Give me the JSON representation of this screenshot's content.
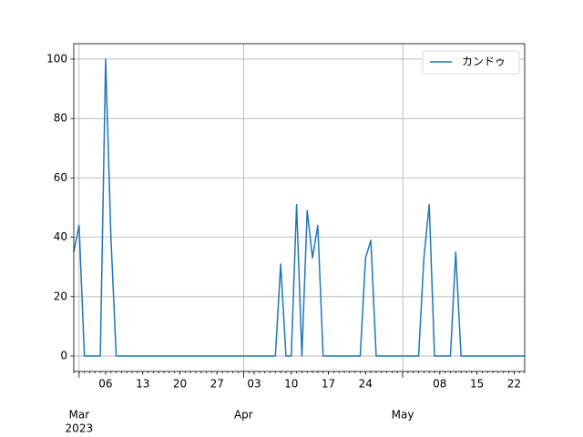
{
  "chart_data": {
    "type": "line",
    "x": [
      "2023-02-28",
      "2023-03-01",
      "2023-03-02",
      "2023-03-03",
      "2023-03-04",
      "2023-03-05",
      "2023-03-06",
      "2023-03-07",
      "2023-03-08",
      "2023-03-09",
      "2023-03-10",
      "2023-03-11",
      "2023-03-12",
      "2023-03-13",
      "2023-03-14",
      "2023-03-15",
      "2023-03-16",
      "2023-03-17",
      "2023-03-18",
      "2023-03-19",
      "2023-03-20",
      "2023-03-21",
      "2023-03-22",
      "2023-03-23",
      "2023-03-24",
      "2023-03-25",
      "2023-03-26",
      "2023-03-27",
      "2023-03-28",
      "2023-03-29",
      "2023-03-30",
      "2023-03-31",
      "2023-04-01",
      "2023-04-02",
      "2023-04-03",
      "2023-04-04",
      "2023-04-05",
      "2023-04-06",
      "2023-04-07",
      "2023-04-08",
      "2023-04-09",
      "2023-04-10",
      "2023-04-11",
      "2023-04-12",
      "2023-04-13",
      "2023-04-14",
      "2023-04-15",
      "2023-04-16",
      "2023-04-17",
      "2023-04-18",
      "2023-04-19",
      "2023-04-20",
      "2023-04-21",
      "2023-04-22",
      "2023-04-23",
      "2023-04-24",
      "2023-04-25",
      "2023-04-26",
      "2023-04-27",
      "2023-04-28",
      "2023-04-29",
      "2023-04-30",
      "2023-05-01",
      "2023-05-02",
      "2023-05-03",
      "2023-05-04",
      "2023-05-05",
      "2023-05-06",
      "2023-05-07",
      "2023-05-08",
      "2023-05-09",
      "2023-05-10",
      "2023-05-11",
      "2023-05-12",
      "2023-05-13",
      "2023-05-14",
      "2023-05-15",
      "2023-05-16",
      "2023-05-17",
      "2023-05-18",
      "2023-05-19",
      "2023-05-20",
      "2023-05-21",
      "2023-05-22",
      "2023-05-23",
      "2023-05-24"
    ],
    "series": [
      {
        "name": "カンドゥ",
        "color": "#1f77b4",
        "values": [
          35,
          44,
          0,
          0,
          0,
          0,
          100,
          40,
          0,
          0,
          0,
          0,
          0,
          0,
          0,
          0,
          0,
          0,
          0,
          0,
          0,
          0,
          0,
          0,
          0,
          0,
          0,
          0,
          0,
          0,
          0,
          0,
          0,
          0,
          0,
          0,
          0,
          0,
          0,
          31,
          0,
          0,
          51,
          0,
          49,
          33,
          44,
          0,
          0,
          0,
          0,
          0,
          0,
          0,
          0,
          33,
          39,
          0,
          0,
          0,
          0,
          0,
          0,
          0,
          0,
          0,
          33,
          51,
          0,
          0,
          0,
          0,
          35,
          0,
          0,
          0,
          0,
          0,
          0,
          0,
          0,
          0,
          0,
          0,
          0,
          0
        ]
      }
    ],
    "xlim": [
      "2023-02-28",
      "2023-05-24"
    ],
    "xticks": [
      {
        "value": "2023-03-01",
        "label": "Mar"
      },
      {
        "value": "2023-03-06",
        "label": "06"
      },
      {
        "value": "2023-03-13",
        "label": "13"
      },
      {
        "value": "2023-03-20",
        "label": "20"
      },
      {
        "value": "2023-03-27",
        "label": "27"
      },
      {
        "value": "2023-04-01",
        "label": "Apr"
      },
      {
        "value": "2023-04-03",
        "label": "03"
      },
      {
        "value": "2023-04-10",
        "label": "10"
      },
      {
        "value": "2023-04-17",
        "label": "17"
      },
      {
        "value": "2023-04-24",
        "label": "24"
      },
      {
        "value": "2023-05-01",
        "label": "May"
      },
      {
        "value": "2023-05-08",
        "label": "08"
      },
      {
        "value": "2023-05-15",
        "label": "15"
      },
      {
        "value": "2023-05-22",
        "label": "22"
      }
    ],
    "year_label": "2023",
    "ylim": [
      -5.2,
      105.2
    ],
    "yticks": [
      0,
      20,
      40,
      60,
      80,
      100
    ],
    "grid": true,
    "legend": "upper right"
  }
}
